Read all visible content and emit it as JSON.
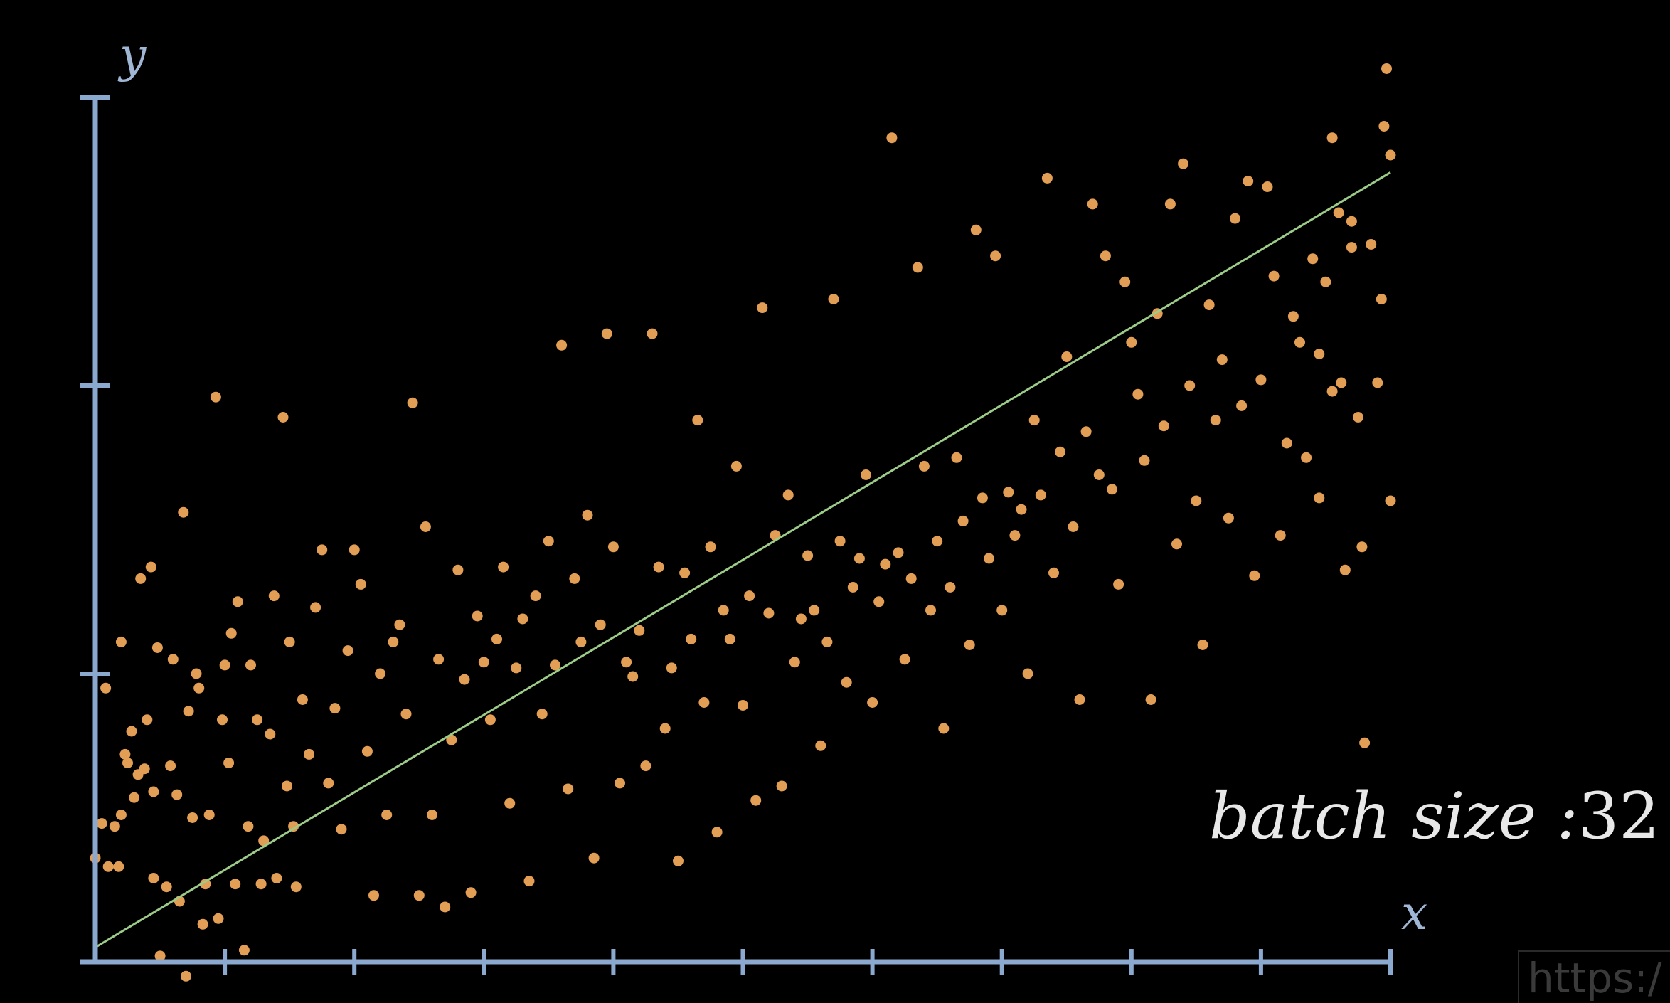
{
  "colors": {
    "background": "#000000",
    "axis": "#8ba9cf",
    "points": "#e29e55",
    "fit_line": "#9ccc88",
    "label": "#e8e8e8"
  },
  "batch": {
    "label": "batch size :",
    "value": "32"
  },
  "watermark": "https:/",
  "chart_data": {
    "type": "scatter",
    "xlabel": "x",
    "ylabel": "y",
    "xlim": [
      0,
      10
    ],
    "ylim": [
      0,
      3
    ],
    "xticks": [
      1,
      2,
      3,
      4,
      5,
      6,
      7,
      8,
      9,
      10
    ],
    "yticks": [
      1,
      2,
      3
    ],
    "grid": false,
    "legend": "none",
    "tick_labels_shown": false,
    "fit_line": {
      "x": [
        0,
        10
      ],
      "y": [
        0.05,
        2.74
      ]
    },
    "series": [
      {
        "values": [
          [
            0.0,
            0.36
          ],
          [
            0.05,
            0.48
          ],
          [
            0.08,
            0.95
          ],
          [
            0.1,
            0.33
          ],
          [
            0.15,
            0.47
          ],
          [
            0.18,
            0.33
          ],
          [
            0.2,
            0.51
          ],
          [
            0.2,
            1.11
          ],
          [
            0.23,
            0.72
          ],
          [
            0.25,
            0.69
          ],
          [
            0.28,
            0.8
          ],
          [
            0.3,
            0.57
          ],
          [
            0.33,
            0.65
          ],
          [
            0.35,
            1.33
          ],
          [
            0.38,
            0.67
          ],
          [
            0.4,
            0.84
          ],
          [
            0.43,
            1.37
          ],
          [
            0.45,
            0.59
          ],
          [
            0.45,
            0.29
          ],
          [
            0.48,
            1.09
          ],
          [
            0.5,
            0.02
          ],
          [
            0.55,
            0.26
          ],
          [
            0.58,
            0.68
          ],
          [
            0.6,
            1.05
          ],
          [
            0.63,
            0.58
          ],
          [
            0.65,
            0.21
          ],
          [
            0.68,
            1.56
          ],
          [
            0.7,
            -0.05
          ],
          [
            0.72,
            0.87
          ],
          [
            0.75,
            0.5
          ],
          [
            0.78,
            1.0
          ],
          [
            0.8,
            0.95
          ],
          [
            0.83,
            0.13
          ],
          [
            0.85,
            0.27
          ],
          [
            0.88,
            0.51
          ],
          [
            0.93,
            1.96
          ],
          [
            0.95,
            0.15
          ],
          [
            0.98,
            0.84
          ],
          [
            1.0,
            1.03
          ],
          [
            1.03,
            0.69
          ],
          [
            1.05,
            1.14
          ],
          [
            1.08,
            0.27
          ],
          [
            1.1,
            1.25
          ],
          [
            1.15,
            0.04
          ],
          [
            1.18,
            0.47
          ],
          [
            1.2,
            1.03
          ],
          [
            1.25,
            0.84
          ],
          [
            1.28,
            0.27
          ],
          [
            1.3,
            0.42
          ],
          [
            1.35,
            0.79
          ],
          [
            1.38,
            1.27
          ],
          [
            1.4,
            0.29
          ],
          [
            1.45,
            1.89
          ],
          [
            1.48,
            0.61
          ],
          [
            1.5,
            1.11
          ],
          [
            1.53,
            0.47
          ],
          [
            1.55,
            0.26
          ],
          [
            1.6,
            0.91
          ],
          [
            1.65,
            0.72
          ],
          [
            1.7,
            1.23
          ],
          [
            1.75,
            1.43
          ],
          [
            1.8,
            0.62
          ],
          [
            1.85,
            0.88
          ],
          [
            1.9,
            0.46
          ],
          [
            1.95,
            1.08
          ],
          [
            2.0,
            1.43
          ],
          [
            2.05,
            1.31
          ],
          [
            2.1,
            0.73
          ],
          [
            2.15,
            0.23
          ],
          [
            2.2,
            1.0
          ],
          [
            2.25,
            0.51
          ],
          [
            2.3,
            1.11
          ],
          [
            2.35,
            1.17
          ],
          [
            2.4,
            0.86
          ],
          [
            2.45,
            1.94
          ],
          [
            2.5,
            0.23
          ],
          [
            2.55,
            1.51
          ],
          [
            2.6,
            0.51
          ],
          [
            2.65,
            1.05
          ],
          [
            2.7,
            0.19
          ],
          [
            2.75,
            0.77
          ],
          [
            2.8,
            1.36
          ],
          [
            2.85,
            0.98
          ],
          [
            2.9,
            0.24
          ],
          [
            2.95,
            1.2
          ],
          [
            3.0,
            1.04
          ],
          [
            3.05,
            0.84
          ],
          [
            3.1,
            1.12
          ],
          [
            3.15,
            1.37
          ],
          [
            3.2,
            0.55
          ],
          [
            3.25,
            1.02
          ],
          [
            3.3,
            1.19
          ],
          [
            3.35,
            0.28
          ],
          [
            3.4,
            1.27
          ],
          [
            3.45,
            0.86
          ],
          [
            3.5,
            1.46
          ],
          [
            3.55,
            1.03
          ],
          [
            3.6,
            2.14
          ],
          [
            3.65,
            0.6
          ],
          [
            3.7,
            1.33
          ],
          [
            3.75,
            1.11
          ],
          [
            3.8,
            1.55
          ],
          [
            3.85,
            0.36
          ],
          [
            3.9,
            1.17
          ],
          [
            3.95,
            2.18
          ],
          [
            4.0,
            1.44
          ],
          [
            4.05,
            0.62
          ],
          [
            4.1,
            1.04
          ],
          [
            4.15,
            0.99
          ],
          [
            4.2,
            1.15
          ],
          [
            4.25,
            0.68
          ],
          [
            4.3,
            2.18
          ],
          [
            4.35,
            1.37
          ],
          [
            4.4,
            0.81
          ],
          [
            4.45,
            1.02
          ],
          [
            4.5,
            0.35
          ],
          [
            4.55,
            1.35
          ],
          [
            4.6,
            1.12
          ],
          [
            4.65,
            1.88
          ],
          [
            4.7,
            0.9
          ],
          [
            4.75,
            1.44
          ],
          [
            4.8,
            0.45
          ],
          [
            4.85,
            1.22
          ],
          [
            4.9,
            1.12
          ],
          [
            4.95,
            1.72
          ],
          [
            5.0,
            0.89
          ],
          [
            5.05,
            1.27
          ],
          [
            5.1,
            0.56
          ],
          [
            5.15,
            2.27
          ],
          [
            5.2,
            1.21
          ],
          [
            5.25,
            1.48
          ],
          [
            5.3,
            0.61
          ],
          [
            5.35,
            1.62
          ],
          [
            5.4,
            1.04
          ],
          [
            5.45,
            1.19
          ],
          [
            5.5,
            1.41
          ],
          [
            5.55,
            1.22
          ],
          [
            5.6,
            0.75
          ],
          [
            5.65,
            1.11
          ],
          [
            5.7,
            2.3
          ],
          [
            5.75,
            1.46
          ],
          [
            5.8,
            0.97
          ],
          [
            5.85,
            1.3
          ],
          [
            5.9,
            1.4
          ],
          [
            5.95,
            1.69
          ],
          [
            6.0,
            0.9
          ],
          [
            6.05,
            1.25
          ],
          [
            6.1,
            1.38
          ],
          [
            6.15,
            2.86
          ],
          [
            6.2,
            1.42
          ],
          [
            6.25,
            1.05
          ],
          [
            6.3,
            1.33
          ],
          [
            6.35,
            2.41
          ],
          [
            6.4,
            1.72
          ],
          [
            6.45,
            1.22
          ],
          [
            6.5,
            1.46
          ],
          [
            6.55,
            0.81
          ],
          [
            6.6,
            1.3
          ],
          [
            6.65,
            1.75
          ],
          [
            6.7,
            1.53
          ],
          [
            6.75,
            1.1
          ],
          [
            6.8,
            2.54
          ],
          [
            6.85,
            1.61
          ],
          [
            6.9,
            1.4
          ],
          [
            6.95,
            2.45
          ],
          [
            7.0,
            1.22
          ],
          [
            7.05,
            1.63
          ],
          [
            7.1,
            1.48
          ],
          [
            7.15,
            1.57
          ],
          [
            7.2,
            1.0
          ],
          [
            7.25,
            1.88
          ],
          [
            7.3,
            1.62
          ],
          [
            7.35,
            2.72
          ],
          [
            7.4,
            1.35
          ],
          [
            7.45,
            1.77
          ],
          [
            7.5,
            2.1
          ],
          [
            7.55,
            1.51
          ],
          [
            7.6,
            0.91
          ],
          [
            7.65,
            1.84
          ],
          [
            7.7,
            2.63
          ],
          [
            7.75,
            1.69
          ],
          [
            7.8,
            2.45
          ],
          [
            7.85,
            1.64
          ],
          [
            7.9,
            1.31
          ],
          [
            7.95,
            2.36
          ],
          [
            8.0,
            2.15
          ],
          [
            8.05,
            1.97
          ],
          [
            8.1,
            1.74
          ],
          [
            8.15,
            0.91
          ],
          [
            8.2,
            2.25
          ],
          [
            8.25,
            1.86
          ],
          [
            8.3,
            2.63
          ],
          [
            8.35,
            1.45
          ],
          [
            8.4,
            2.77
          ],
          [
            8.45,
            2.0
          ],
          [
            8.5,
            1.6
          ],
          [
            8.55,
            1.1
          ],
          [
            8.6,
            2.28
          ],
          [
            8.65,
            1.88
          ],
          [
            8.7,
            2.09
          ],
          [
            8.75,
            1.54
          ],
          [
            8.8,
            2.58
          ],
          [
            8.85,
            1.93
          ],
          [
            8.9,
            2.71
          ],
          [
            8.95,
            1.34
          ],
          [
            9.0,
            2.02
          ],
          [
            9.05,
            2.69
          ],
          [
            9.1,
            2.38
          ],
          [
            9.15,
            1.48
          ],
          [
            9.2,
            1.8
          ],
          [
            9.25,
            2.24
          ],
          [
            9.3,
            2.15
          ],
          [
            9.35,
            1.75
          ],
          [
            9.4,
            2.44
          ],
          [
            9.45,
            1.61
          ],
          [
            9.5,
            2.36
          ],
          [
            9.55,
            1.98
          ],
          [
            9.6,
            2.6
          ],
          [
            9.65,
            1.36
          ],
          [
            9.7,
            2.48
          ],
          [
            9.75,
            1.89
          ],
          [
            9.8,
            0.76
          ],
          [
            9.85,
            2.49
          ],
          [
            9.9,
            2.01
          ],
          [
            9.95,
            2.9
          ],
          [
            10.0,
            1.6
          ],
          [
            10.0,
            2.8
          ],
          [
            9.97,
            3.1
          ],
          [
            9.93,
            2.3
          ],
          [
            9.78,
            1.44
          ],
          [
            9.7,
            2.57
          ],
          [
            9.62,
            2.01
          ],
          [
            9.55,
            2.86
          ],
          [
            9.45,
            2.11
          ]
        ]
      }
    ]
  }
}
